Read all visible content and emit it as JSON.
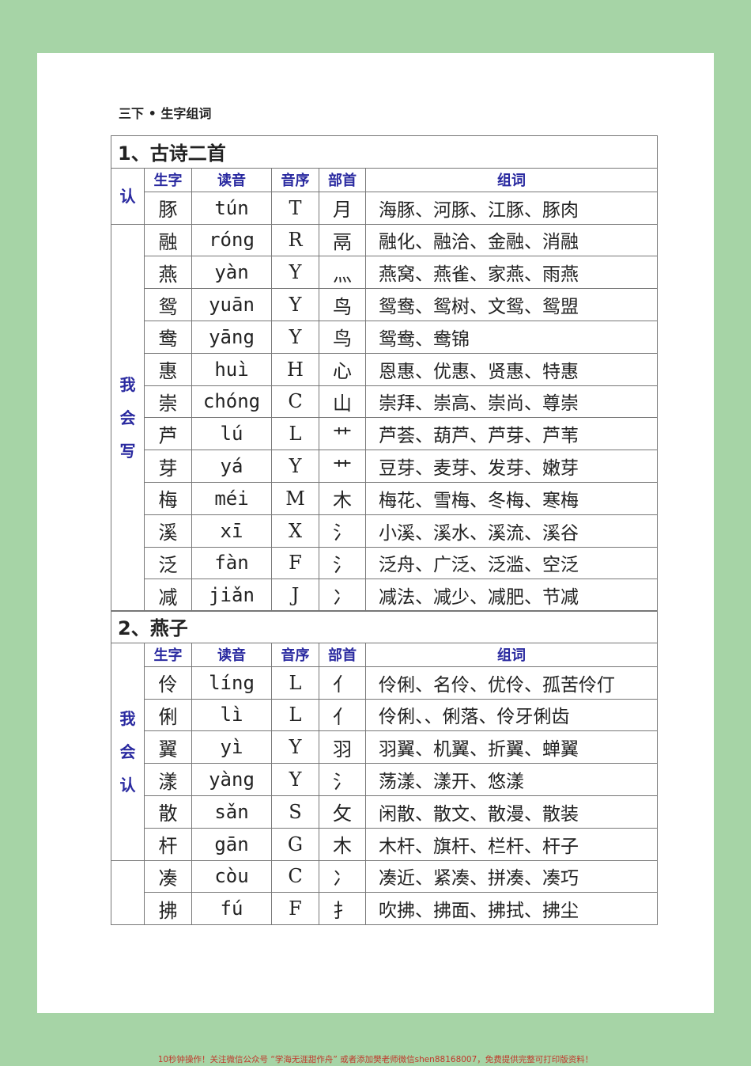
{
  "doc_title": "三下 • 生字组词",
  "headers": [
    "生字",
    "读音",
    "音序",
    "部首",
    "组词"
  ],
  "sections": [
    {
      "title": "1、古诗二首",
      "groups": [
        {
          "label": [
            "认"
          ],
          "rows": [
            {
              "char": "豚",
              "pinyin": "tún",
              "letter": "T",
              "radical": "月",
              "words": "海豚、河豚、江豚、豚肉"
            }
          ]
        },
        {
          "label": [
            "我",
            "会",
            "写"
          ],
          "rows": [
            {
              "char": "融",
              "pinyin": "róng",
              "letter": "R",
              "radical": "鬲",
              "words": "融化、融洽、金融、消融"
            },
            {
              "char": "燕",
              "pinyin": "yàn",
              "letter": "Y",
              "radical": "灬",
              "words": "燕窝、燕雀、家燕、雨燕"
            },
            {
              "char": "鸳",
              "pinyin": "yuān",
              "letter": "Y",
              "radical": "鸟",
              "words": "鸳鸯、鸳树、文鸳、鸳盟"
            },
            {
              "char": "鸯",
              "pinyin": "yāng",
              "letter": "Y",
              "radical": "鸟",
              "words": "鸳鸯、鸯锦"
            },
            {
              "char": "惠",
              "pinyin": "huì",
              "letter": "H",
              "radical": "心",
              "words": "恩惠、优惠、贤惠、特惠"
            },
            {
              "char": "崇",
              "pinyin": "chóng",
              "letter": "C",
              "radical": "山",
              "words": "崇拜、崇高、崇尚、尊崇"
            },
            {
              "char": "芦",
              "pinyin": "lú",
              "letter": "L",
              "radical": "艹",
              "words": "芦荟、葫芦、芦芽、芦苇"
            },
            {
              "char": "芽",
              "pinyin": "yá",
              "letter": "Y",
              "radical": "艹",
              "words": "豆芽、麦芽、发芽、嫩芽"
            },
            {
              "char": "梅",
              "pinyin": "méi",
              "letter": "M",
              "radical": "木",
              "words": "梅花、雪梅、冬梅、寒梅"
            },
            {
              "char": "溪",
              "pinyin": "xī",
              "letter": "X",
              "radical": "氵",
              "words": "小溪、溪水、溪流、溪谷"
            },
            {
              "char": "泛",
              "pinyin": "fàn",
              "letter": "F",
              "radical": "氵",
              "words": "泛舟、广泛、泛滥、空泛"
            },
            {
              "char": "减",
              "pinyin": "jiǎn",
              "letter": "J",
              "radical": "冫",
              "words": "减法、减少、减肥、节减"
            }
          ]
        }
      ]
    },
    {
      "title": "2、燕子",
      "groups": [
        {
          "label": [
            "我",
            "会",
            "认"
          ],
          "rows": [
            {
              "char": "伶",
              "pinyin": "líng",
              "letter": "L",
              "radical": "亻",
              "words": "伶俐、名伶、优伶、孤苦伶仃"
            },
            {
              "char": "俐",
              "pinyin": "lì",
              "letter": "L",
              "radical": "亻",
              "words": "伶俐、、俐落、伶牙俐齿"
            },
            {
              "char": "翼",
              "pinyin": "yì",
              "letter": "Y",
              "radical": "羽",
              "words": "羽翼、机翼、折翼、蝉翼"
            },
            {
              "char": "漾",
              "pinyin": "yàng",
              "letter": "Y",
              "radical": "氵",
              "words": "荡漾、漾开、悠漾"
            },
            {
              "char": "散",
              "pinyin": "sǎn",
              "letter": "S",
              "radical": "攵",
              "words": "闲散、散文、散漫、散装"
            },
            {
              "char": "杆",
              "pinyin": "gān",
              "letter": "G",
              "radical": "木",
              "words": "木杆、旗杆、栏杆、杆子"
            }
          ]
        },
        {
          "label": [],
          "rows": [
            {
              "char": "凑",
              "pinyin": "còu",
              "letter": "C",
              "radical": "冫",
              "words": "凑近、紧凑、拼凑、凑巧"
            },
            {
              "char": "拂",
              "pinyin": "fú",
              "letter": "F",
              "radical": "扌",
              "words": "吹拂、拂面、拂拭、拂尘"
            }
          ]
        }
      ]
    }
  ],
  "footer": "10秒钟操作！关注微信公众号 “学海无涯甜作舟” 或者添加樊老师微信shen88168007，免费提供完整可打印版资料！"
}
